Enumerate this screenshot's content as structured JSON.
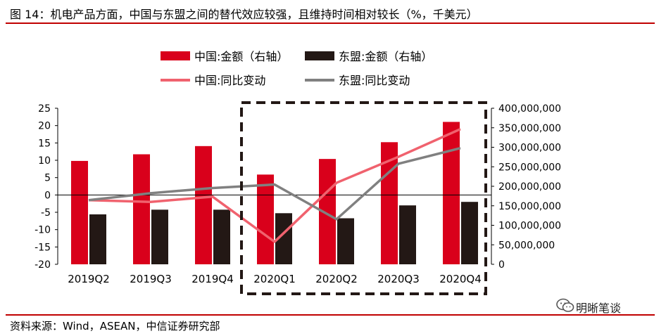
{
  "header": {
    "title": "图 14：机电产品方面，中国与东盟之间的替代效应较强，且维持时间相对较长（%，千美元）"
  },
  "footer": {
    "source": "资料来源：Wind，ASEAN，中信证券研究部"
  },
  "watermark": {
    "text": "明晰笔谈",
    "icon": "wechat-icon"
  },
  "colors": {
    "rule": "#c00000",
    "china_bar": "#d9001b",
    "asean_bar": "#231815",
    "china_line": "#f0626e",
    "asean_line": "#808080",
    "highlight_box": "#231815"
  },
  "chart_data": {
    "type": "bar",
    "categories": [
      "2019Q2",
      "2019Q3",
      "2019Q4",
      "2020Q1",
      "2020Q2",
      "2020Q3",
      "2020Q4"
    ],
    "series": [
      {
        "name": "中国:金额（右轴）",
        "kind": "bar",
        "axis": "right",
        "values": [
          265000000,
          282000000,
          303000000,
          230000000,
          270000000,
          313000000,
          365000000
        ]
      },
      {
        "name": "东盟:金额（右轴）",
        "kind": "bar",
        "axis": "right",
        "values": [
          128000000,
          140000000,
          140000000,
          131000000,
          118000000,
          151000000,
          160000000
        ]
      },
      {
        "name": "中国:同比变动",
        "kind": "line",
        "axis": "left",
        "values": [
          -1.5,
          -2,
          -0.5,
          -13.5,
          3.5,
          11,
          19
        ]
      },
      {
        "name": "东盟:同比变动",
        "kind": "line",
        "axis": "left",
        "values": [
          -1.5,
          0.5,
          2,
          3,
          -7,
          9,
          13.5
        ]
      }
    ],
    "left_axis": {
      "min": -20,
      "max": 25,
      "ticks": [
        "25",
        "20",
        "15",
        "10",
        "5",
        "0",
        "-5",
        "-10",
        "-15",
        "-20"
      ]
    },
    "right_axis": {
      "min": 0,
      "max": 400000000,
      "ticks": [
        "400,000,000",
        "350,000,000",
        "300,000,000",
        "250,000,000",
        "200,000,000",
        "150,000,000",
        "100,000,000",
        "50,000,000",
        "0"
      ]
    },
    "highlight": {
      "categories": [
        "2020Q1",
        "2020Q4"
      ],
      "style": "dashed"
    },
    "legend": {
      "placement": "top",
      "items": [
        "中国:金额（右轴）",
        "东盟:金额（右轴）",
        "中国:同比变动",
        "东盟:同比变动"
      ]
    },
    "grid": false
  }
}
